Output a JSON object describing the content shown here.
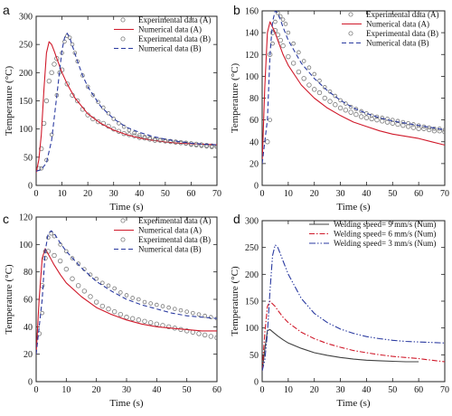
{
  "chart_data": [
    {
      "type": "line",
      "panel_label": "a",
      "xlabel": "Time (s)",
      "ylabel": "Temperature (°C)",
      "xlim": [
        0,
        70
      ],
      "ylim": [
        0,
        300
      ],
      "xticks": [
        0,
        10,
        20,
        30,
        40,
        50,
        60,
        70
      ],
      "yticks": [
        0,
        50,
        100,
        150,
        200,
        250,
        300
      ],
      "legend_position": "top-right",
      "series": [
        {
          "name": "Experimental data (A)",
          "style": "circle",
          "color": "#7a7a7a",
          "x": [
            1,
            2,
            3,
            4,
            5,
            6,
            7,
            8,
            10,
            12,
            14,
            16,
            18,
            20,
            22,
            24,
            26,
            28,
            30,
            32,
            34,
            36,
            38,
            40,
            42,
            44,
            46,
            48,
            50,
            52,
            54,
            56,
            58,
            60,
            62,
            64,
            66,
            68,
            70
          ],
          "y": [
            30,
            65,
            110,
            150,
            185,
            200,
            215,
            225,
            205,
            180,
            160,
            150,
            135,
            125,
            118,
            113,
            110,
            105,
            100,
            96,
            92,
            90,
            88,
            85,
            84,
            82,
            80,
            80,
            79,
            78,
            77,
            76,
            75,
            74,
            73,
            72,
            71,
            70,
            69
          ]
        },
        {
          "name": "Numerical data (A)",
          "style": "solid",
          "color": "#d0192a",
          "x": [
            0,
            1,
            2,
            3,
            4,
            5,
            6,
            7,
            8,
            10,
            12,
            15,
            20,
            25,
            30,
            35,
            40,
            45,
            50,
            55,
            60,
            65,
            70
          ],
          "y": [
            22,
            45,
            90,
            170,
            235,
            255,
            250,
            238,
            225,
            200,
            180,
            155,
            127,
            110,
            98,
            90,
            84,
            80,
            77,
            75,
            74,
            73,
            72
          ]
        },
        {
          "name": "Experimental data (B)",
          "style": "circle-small",
          "color": "#7a7a7a",
          "x": [
            2,
            4,
            6,
            8,
            9,
            10,
            11,
            12,
            13,
            14,
            15,
            16,
            18,
            20,
            22,
            24,
            26,
            28,
            30,
            32,
            34,
            36,
            38,
            40,
            42,
            44,
            46,
            48,
            50,
            52,
            54,
            56,
            58,
            60,
            62,
            64,
            66,
            68,
            70
          ],
          "y": [
            30,
            45,
            90,
            160,
            200,
            235,
            255,
            265,
            262,
            250,
            235,
            220,
            195,
            175,
            160,
            148,
            138,
            128,
            118,
            110,
            104,
            98,
            93,
            89,
            86,
            84,
            82,
            80,
            78,
            77,
            76,
            75,
            74,
            72,
            71,
            70,
            69,
            68,
            68
          ]
        },
        {
          "name": "Numerical data (B)",
          "style": "dashed",
          "color": "#2a3aa0",
          "x": [
            0,
            2,
            4,
            6,
            8,
            10,
            11,
            12,
            13,
            14,
            16,
            18,
            20,
            25,
            30,
            35,
            40,
            45,
            50,
            55,
            60,
            65,
            70
          ],
          "y": [
            25,
            28,
            40,
            80,
            160,
            240,
            262,
            270,
            262,
            248,
            220,
            195,
            175,
            140,
            118,
            103,
            94,
            87,
            82,
            78,
            75,
            73,
            72
          ]
        }
      ]
    },
    {
      "type": "line",
      "panel_label": "b",
      "xlabel": "Time (s)",
      "ylabel": "Temperature (°C)",
      "xlim": [
        0,
        70
      ],
      "ylim": [
        0,
        160
      ],
      "xticks": [
        0,
        10,
        20,
        30,
        40,
        50,
        60,
        70
      ],
      "yticks": [
        0,
        20,
        40,
        60,
        80,
        100,
        120,
        140,
        160
      ],
      "legend_position": "top-right",
      "series": [
        {
          "name": "Experimental data (A)",
          "style": "circle",
          "color": "#7a7a7a",
          "x": [
            2,
            3,
            4,
            5,
            6,
            7,
            8,
            10,
            12,
            14,
            16,
            18,
            20,
            22,
            24,
            26,
            28,
            30,
            32,
            34,
            36,
            38,
            40,
            42,
            44,
            46,
            48,
            50,
            52,
            54,
            56,
            58,
            60,
            62,
            64,
            66,
            68,
            70
          ],
          "y": [
            40,
            120,
            140,
            142,
            138,
            133,
            128,
            118,
            112,
            104,
            98,
            92,
            88,
            85,
            80,
            77,
            74,
            71,
            69,
            67,
            65,
            63,
            62,
            61,
            60,
            59,
            58,
            57,
            56,
            55,
            54,
            53,
            52,
            52,
            51,
            50,
            50,
            49
          ]
        },
        {
          "name": "Numerical data (A)",
          "style": "solid",
          "color": "#d0192a",
          "x": [
            0,
            1,
            2,
            3,
            4,
            5,
            6,
            8,
            10,
            15,
            20,
            25,
            30,
            35,
            40,
            45,
            50,
            55,
            60,
            65,
            70
          ],
          "y": [
            20,
            90,
            140,
            150,
            145,
            140,
            133,
            120,
            110,
            92,
            80,
            71,
            64,
            58,
            54,
            50,
            47,
            45,
            43,
            40,
            37
          ]
        },
        {
          "name": "Experimental data (B)",
          "style": "circle-small",
          "color": "#7a7a7a",
          "x": [
            3,
            4,
            5,
            6,
            7,
            8,
            9,
            10,
            12,
            14,
            16,
            18,
            20,
            22,
            24,
            26,
            28,
            30,
            32,
            34,
            36,
            38,
            40,
            42,
            44,
            46,
            48,
            50,
            52,
            54,
            56,
            58,
            60,
            62,
            64,
            66,
            68,
            70
          ],
          "y": [
            60,
            130,
            150,
            158,
            155,
            152,
            148,
            140,
            130,
            122,
            114,
            108,
            102,
            96,
            90,
            86,
            82,
            78,
            75,
            72,
            70,
            68,
            66,
            64,
            63,
            62,
            61,
            60,
            59,
            58,
            57,
            56,
            55,
            54,
            53,
            52,
            52,
            51
          ]
        },
        {
          "name": "Numerical data (B)",
          "style": "dashed",
          "color": "#2a3aa0",
          "x": [
            0,
            2,
            3,
            4,
            5,
            6,
            7,
            8,
            10,
            15,
            20,
            25,
            30,
            35,
            40,
            45,
            50,
            55,
            60,
            65,
            70
          ],
          "y": [
            20,
            60,
            120,
            150,
            160,
            158,
            152,
            145,
            133,
            112,
            98,
            87,
            78,
            71,
            66,
            62,
            59,
            57,
            55,
            53,
            51
          ]
        }
      ]
    },
    {
      "type": "line",
      "panel_label": "c",
      "xlabel": "Time (s)",
      "ylabel": "Temperature (°C)",
      "xlim": [
        0,
        60
      ],
      "ylim": [
        0,
        120
      ],
      "xticks": [
        0,
        10,
        20,
        30,
        40,
        50,
        60
      ],
      "yticks": [
        0,
        20,
        40,
        60,
        80,
        100,
        120
      ],
      "legend_position": "top-right",
      "series": [
        {
          "name": "Experimental data (A)",
          "style": "circle",
          "color": "#7a7a7a",
          "x": [
            1,
            2,
            3,
            4,
            6,
            8,
            10,
            12,
            14,
            16,
            18,
            20,
            22,
            24,
            26,
            28,
            30,
            32,
            34,
            36,
            38,
            40,
            42,
            44,
            46,
            48,
            50,
            52,
            54,
            56,
            58,
            60
          ],
          "y": [
            35,
            70,
            90,
            95,
            92,
            88,
            82,
            75,
            70,
            66,
            62,
            58,
            55,
            53,
            51,
            49,
            47,
            46,
            45,
            44,
            43,
            42,
            41,
            40,
            39,
            38,
            37,
            36,
            35,
            34,
            33,
            32
          ]
        },
        {
          "name": "Numerical data (A)",
          "style": "solid",
          "color": "#d0192a",
          "x": [
            0,
            1,
            2,
            3,
            4,
            6,
            8,
            10,
            15,
            20,
            25,
            30,
            35,
            40,
            45,
            50,
            55,
            60
          ],
          "y": [
            20,
            60,
            90,
            97,
            93,
            85,
            78,
            72,
            62,
            54,
            49,
            45,
            42,
            40,
            39,
            38,
            37,
            37
          ]
        },
        {
          "name": "Experimental data (B)",
          "style": "circle-small",
          "color": "#7a7a7a",
          "x": [
            2,
            3,
            4,
            5,
            6,
            8,
            10,
            12,
            14,
            16,
            18,
            20,
            22,
            24,
            26,
            28,
            30,
            32,
            34,
            36,
            38,
            40,
            42,
            44,
            46,
            48,
            50,
            52,
            54,
            56,
            58,
            60
          ],
          "y": [
            50,
            95,
            105,
            108,
            106,
            100,
            95,
            90,
            86,
            82,
            78,
            75,
            72,
            70,
            68,
            65,
            63,
            61,
            60,
            58,
            57,
            56,
            55,
            54,
            53,
            52,
            51,
            50,
            49,
            48,
            47,
            46
          ]
        },
        {
          "name": "Numerical data (B)",
          "style": "dashed",
          "color": "#2a3aa0",
          "x": [
            0,
            2,
            3,
            4,
            5,
            6,
            8,
            10,
            15,
            20,
            25,
            30,
            35,
            40,
            45,
            50,
            55,
            60
          ],
          "y": [
            20,
            60,
            95,
            108,
            110,
            108,
            101,
            95,
            83,
            73,
            66,
            60,
            56,
            53,
            50,
            48,
            47,
            46
          ]
        }
      ]
    },
    {
      "type": "line",
      "panel_label": "d",
      "xlabel": "Time (s)",
      "ylabel": "Temperature (°C)",
      "xlim": [
        0,
        70
      ],
      "ylim": [
        0,
        300
      ],
      "xticks": [
        0,
        10,
        20,
        30,
        40,
        50,
        60,
        70
      ],
      "yticks": [
        0,
        50,
        100,
        150,
        200,
        250,
        300
      ],
      "legend_position": "top-right",
      "series": [
        {
          "name": "Welding speed= 9 mm/s (Num)",
          "style": "solid",
          "color": "#404040",
          "x": [
            0,
            1,
            2,
            3,
            4,
            6,
            8,
            10,
            15,
            20,
            25,
            30,
            35,
            40,
            45,
            50,
            55,
            60
          ],
          "y": [
            20,
            60,
            95,
            97,
            93,
            85,
            78,
            72,
            62,
            54,
            49,
            45,
            42,
            40,
            39,
            38,
            37,
            37
          ]
        },
        {
          "name": "Welding speed= 6 mm/s (Num)",
          "style": "dashdot",
          "color": "#d0192a",
          "x": [
            0,
            1,
            2,
            3,
            4,
            5,
            6,
            8,
            10,
            15,
            20,
            25,
            30,
            35,
            40,
            45,
            50,
            55,
            60,
            65,
            70
          ],
          "y": [
            20,
            90,
            140,
            150,
            145,
            140,
            133,
            120,
            110,
            92,
            80,
            71,
            64,
            58,
            54,
            50,
            47,
            45,
            43,
            40,
            37
          ]
        },
        {
          "name": "Welding speed= 3 mm/s (Num)",
          "style": "dashdotdot",
          "color": "#2a3aa0",
          "x": [
            0,
            1,
            2,
            3,
            4,
            5,
            6,
            7,
            8,
            10,
            15,
            20,
            25,
            30,
            35,
            40,
            45,
            50,
            55,
            60,
            65,
            70
          ],
          "y": [
            20,
            40,
            90,
            170,
            235,
            255,
            250,
            238,
            225,
            200,
            155,
            127,
            110,
            98,
            90,
            84,
            80,
            77,
            75,
            74,
            73,
            72
          ]
        }
      ]
    }
  ]
}
